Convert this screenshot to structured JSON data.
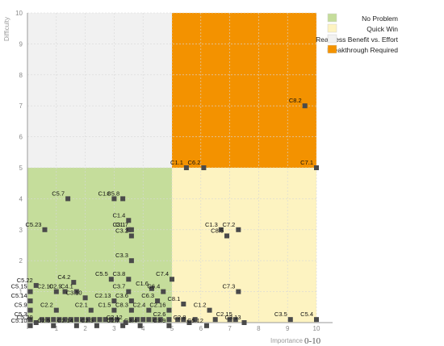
{
  "chart_data": {
    "type": "scatter",
    "title": "",
    "xlabel": "Importance",
    "xlabel_unit": "0-10",
    "ylabel": "Difficulty",
    "xlim": [
      0,
      10
    ],
    "ylim": [
      0,
      10
    ],
    "x_ticks": [
      "1",
      "2",
      "3",
      "4",
      "5",
      "6",
      "7",
      "8",
      "9",
      "10"
    ],
    "y_ticks": [
      "1",
      "2",
      "3",
      "4",
      "5",
      "6",
      "7",
      "8",
      "9",
      "10"
    ],
    "grid": true,
    "legend_position": "top-right",
    "quadrants": [
      {
        "name": "No Problem",
        "color": "#c5dd9b",
        "x": [
          0,
          5
        ],
        "y": [
          0,
          5
        ]
      },
      {
        "name": "Quick Win",
        "color": "#fdf3c1",
        "x": [
          5,
          10
        ],
        "y": [
          0,
          5
        ]
      },
      {
        "name": "Reassess Benefit vs. Effort",
        "color": "#f1f1f1",
        "x": [
          0,
          5
        ],
        "y": [
          5,
          10
        ]
      },
      {
        "name": "Breakthrough Required",
        "color": "#f39200",
        "x": [
          5,
          10
        ],
        "y": [
          5,
          10
        ]
      }
    ],
    "points": [
      {
        "label": "C8.2",
        "x": 9.6,
        "y": 7.0
      },
      {
        "label": "C1.1",
        "x": 5.5,
        "y": 5.0
      },
      {
        "label": "C6.2",
        "x": 6.1,
        "y": 5.0
      },
      {
        "label": "C7.1",
        "x": 10.0,
        "y": 5.0
      },
      {
        "label": "C5.7",
        "x": 1.4,
        "y": 4.0
      },
      {
        "label": "C1.8",
        "x": 3.0,
        "y": 4.0
      },
      {
        "label": "C5.8",
        "x": 3.3,
        "y": 4.0
      },
      {
        "label": "C5.23",
        "x": 0.6,
        "y": 3.0
      },
      {
        "label": "C1.4",
        "x": 3.5,
        "y": 3.3
      },
      {
        "label": "C3.1",
        "x": 3.5,
        "y": 3.0
      },
      {
        "label": "C1.7",
        "x": 3.6,
        "y": 3.0
      },
      {
        "label": "C3.2",
        "x": 3.6,
        "y": 2.8
      },
      {
        "label": "C1.3",
        "x": 6.7,
        "y": 3.0
      },
      {
        "label": "C7.2",
        "x": 7.3,
        "y": 3.0
      },
      {
        "label": "C8.5",
        "x": 6.9,
        "y": 2.8
      },
      {
        "label": "C3.3",
        "x": 3.6,
        "y": 2.0
      },
      {
        "label": "C7.4",
        "x": 5.0,
        "y": 1.4
      },
      {
        "label": "C7.3",
        "x": 7.3,
        "y": 1.0
      },
      {
        "label": "C3.8",
        "x": 3.5,
        "y": 1.4
      },
      {
        "label": "C5.5",
        "x": 2.9,
        "y": 1.4
      },
      {
        "label": "C4.2",
        "x": 1.6,
        "y": 1.3
      },
      {
        "label": "C2.9",
        "x": 1.3,
        "y": 1.0
      },
      {
        "label": "C4.1",
        "x": 1.7,
        "y": 1.0
      },
      {
        "label": "C2.10",
        "x": 1.0,
        "y": 1.0
      },
      {
        "label": "C1.6",
        "x": 4.3,
        "y": 1.1
      },
      {
        "label": "C6.4",
        "x": 4.7,
        "y": 1.0
      },
      {
        "label": "C3.7",
        "x": 3.5,
        "y": 1.0
      },
      {
        "label": "C5.22",
        "x": 0.3,
        "y": 1.2
      },
      {
        "label": "C5.15",
        "x": 0.1,
        "y": 1.0
      },
      {
        "label": "C5.14",
        "x": 0.1,
        "y": 0.7
      },
      {
        "label": "C3.10",
        "x": 2.0,
        "y": 0.8
      },
      {
        "label": "C2.13",
        "x": 3.0,
        "y": 0.7
      },
      {
        "label": "C3.6",
        "x": 3.6,
        "y": 0.7
      },
      {
        "label": "C6.3",
        "x": 4.5,
        "y": 0.7
      },
      {
        "label": "C8.1",
        "x": 5.4,
        "y": 0.6
      },
      {
        "label": "C5.9",
        "x": 0.1,
        "y": 0.4
      },
      {
        "label": "C2.2",
        "x": 1.0,
        "y": 0.4
      },
      {
        "label": "C2.1",
        "x": 2.2,
        "y": 0.4
      },
      {
        "label": "C1.5",
        "x": 3.0,
        "y": 0.4
      },
      {
        "label": "C8.3",
        "x": 3.6,
        "y": 0.4
      },
      {
        "label": "C2.4",
        "x": 4.2,
        "y": 0.4
      },
      {
        "label": "C2.16",
        "x": 4.9,
        "y": 0.4
      },
      {
        "label": "C1.2",
        "x": 6.3,
        "y": 0.4
      },
      {
        "label": "C5.3",
        "x": 0.1,
        "y": 0.1
      },
      {
        "label": "C2.6",
        "x": 4.9,
        "y": 0.1
      },
      {
        "label": "C2.15",
        "x": 7.2,
        "y": 0.1
      },
      {
        "label": "C3.5",
        "x": 9.1,
        "y": 0.1
      },
      {
        "label": "C5.4",
        "x": 10.0,
        "y": 0.1
      },
      {
        "label": "C5.20",
        "x": 0.3,
        "y": 0.0
      },
      {
        "label": "C5.10",
        "x": 0.1,
        "y": -0.1
      },
      {
        "label": "C2.5",
        "x": 0.9,
        "y": -0.1
      },
      {
        "label": "C2.14",
        "x": 1.7,
        "y": -0.1
      },
      {
        "label": "C2.3",
        "x": 2.4,
        "y": -0.1
      },
      {
        "label": "C2.7",
        "x": 3.3,
        "y": -0.1
      },
      {
        "label": "C3.4",
        "x": 3.9,
        "y": -0.1
      },
      {
        "label": "C3.9",
        "x": 4.9,
        "y": -0.1
      },
      {
        "label": "C2.8",
        "x": 5.6,
        "y": 0.0
      },
      {
        "label": "C5.12",
        "x": 6.2,
        "y": -0.1
      },
      {
        "label": "C3.13",
        "x": 7.5,
        "y": 0.0
      },
      {
        "label": "C2.12",
        "x": 3.4,
        "y": 0.0
      }
    ],
    "unlabeled_points": [
      {
        "x": 0.5,
        "y": 0.1
      },
      {
        "x": 0.7,
        "y": 0.1
      },
      {
        "x": 0.9,
        "y": 0.1
      },
      {
        "x": 1.1,
        "y": 0.1
      },
      {
        "x": 1.3,
        "y": 0.1
      },
      {
        "x": 1.5,
        "y": 0.1
      },
      {
        "x": 1.7,
        "y": 0.1
      },
      {
        "x": 1.9,
        "y": 0.1
      },
      {
        "x": 2.1,
        "y": 0.1
      },
      {
        "x": 2.3,
        "y": 0.1
      },
      {
        "x": 2.5,
        "y": 0.1
      },
      {
        "x": 2.7,
        "y": 0.1
      },
      {
        "x": 2.9,
        "y": 0.1
      },
      {
        "x": 3.1,
        "y": 0.1
      },
      {
        "x": 3.6,
        "y": 0.1
      },
      {
        "x": 3.8,
        "y": 0.1
      },
      {
        "x": 4.0,
        "y": 0.1
      },
      {
        "x": 4.2,
        "y": 0.1
      },
      {
        "x": 4.4,
        "y": 0.1
      },
      {
        "x": 4.6,
        "y": 0.1
      },
      {
        "x": 5.2,
        "y": 0.1
      },
      {
        "x": 5.4,
        "y": 0.1
      },
      {
        "x": 5.8,
        "y": 0.1
      },
      {
        "x": 6.5,
        "y": 0.1
      },
      {
        "x": 7.0,
        "y": 0.1
      }
    ]
  }
}
